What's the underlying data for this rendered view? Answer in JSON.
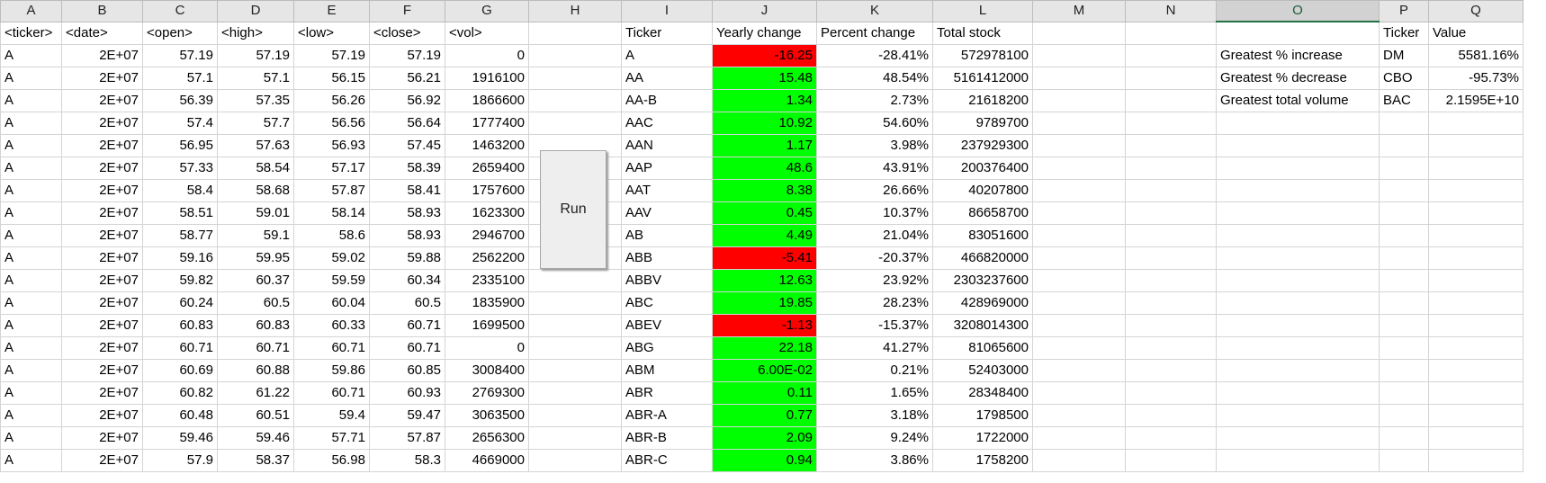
{
  "columns": [
    "A",
    "B",
    "C",
    "D",
    "E",
    "F",
    "G",
    "H",
    "I",
    "J",
    "K",
    "L",
    "M",
    "N",
    "O",
    "P",
    "Q"
  ],
  "selected_column": "O",
  "headers": {
    "ticker": "<ticker>",
    "date": "<date>",
    "open": "<open>",
    "high": "<high>",
    "low": "<low>",
    "close": "<close>",
    "vol": "<vol>",
    "summary_ticker": "Ticker",
    "yearly_change": "Yearly change",
    "percent_change": "Percent change",
    "total_stock": "Total stock",
    "greatest_ticker": "Ticker",
    "greatest_value": "Value"
  },
  "raw_rows": [
    [
      "A",
      "2E+07",
      "57.19",
      "57.19",
      "57.19",
      "57.19",
      "0"
    ],
    [
      "A",
      "2E+07",
      "57.1",
      "57.1",
      "56.15",
      "56.21",
      "1916100"
    ],
    [
      "A",
      "2E+07",
      "56.39",
      "57.35",
      "56.26",
      "56.92",
      "1866600"
    ],
    [
      "A",
      "2E+07",
      "57.4",
      "57.7",
      "56.56",
      "56.64",
      "1777400"
    ],
    [
      "A",
      "2E+07",
      "56.95",
      "57.63",
      "56.93",
      "57.45",
      "1463200"
    ],
    [
      "A",
      "2E+07",
      "57.33",
      "58.54",
      "57.17",
      "58.39",
      "2659400"
    ],
    [
      "A",
      "2E+07",
      "58.4",
      "58.68",
      "57.87",
      "58.41",
      "1757600"
    ],
    [
      "A",
      "2E+07",
      "58.51",
      "59.01",
      "58.14",
      "58.93",
      "1623300"
    ],
    [
      "A",
      "2E+07",
      "58.77",
      "59.1",
      "58.6",
      "58.93",
      "2946700"
    ],
    [
      "A",
      "2E+07",
      "59.16",
      "59.95",
      "59.02",
      "59.88",
      "2562200"
    ],
    [
      "A",
      "2E+07",
      "59.82",
      "60.37",
      "59.59",
      "60.34",
      "2335100"
    ],
    [
      "A",
      "2E+07",
      "60.24",
      "60.5",
      "60.04",
      "60.5",
      "1835900"
    ],
    [
      "A",
      "2E+07",
      "60.83",
      "60.83",
      "60.33",
      "60.71",
      "1699500"
    ],
    [
      "A",
      "2E+07",
      "60.71",
      "60.71",
      "60.71",
      "60.71",
      "0"
    ],
    [
      "A",
      "2E+07",
      "60.69",
      "60.88",
      "59.86",
      "60.85",
      "3008400"
    ],
    [
      "A",
      "2E+07",
      "60.82",
      "61.22",
      "60.71",
      "60.93",
      "2769300"
    ],
    [
      "A",
      "2E+07",
      "60.48",
      "60.51",
      "59.4",
      "59.47",
      "3063500"
    ],
    [
      "A",
      "2E+07",
      "59.46",
      "59.46",
      "57.71",
      "57.87",
      "2656300"
    ],
    [
      "A",
      "2E+07",
      "57.9",
      "58.37",
      "56.98",
      "58.3",
      "4669000"
    ]
  ],
  "summary_rows": [
    [
      "A",
      "-16.25",
      "-28.41%",
      "572978100",
      "negative"
    ],
    [
      "AA",
      "15.48",
      "48.54%",
      "5161412000",
      "positive"
    ],
    [
      "AA-B",
      "1.34",
      "2.73%",
      "21618200",
      "positive"
    ],
    [
      "AAC",
      "10.92",
      "54.60%",
      "9789700",
      "positive"
    ],
    [
      "AAN",
      "1.17",
      "3.98%",
      "237929300",
      "positive"
    ],
    [
      "AAP",
      "48.6",
      "43.91%",
      "200376400",
      "positive"
    ],
    [
      "AAT",
      "8.38",
      "26.66%",
      "40207800",
      "positive"
    ],
    [
      "AAV",
      "0.45",
      "10.37%",
      "86658700",
      "positive"
    ],
    [
      "AB",
      "4.49",
      "21.04%",
      "83051600",
      "positive"
    ],
    [
      "ABB",
      "-5.41",
      "-20.37%",
      "466820000",
      "negative"
    ],
    [
      "ABBV",
      "12.63",
      "23.92%",
      "2303237600",
      "positive"
    ],
    [
      "ABC",
      "19.85",
      "28.23%",
      "428969000",
      "positive"
    ],
    [
      "ABEV",
      "-1.13",
      "-15.37%",
      "3208014300",
      "negative"
    ],
    [
      "ABG",
      "22.18",
      "41.27%",
      "81065600",
      "positive"
    ],
    [
      "ABM",
      "6.00E-02",
      "0.21%",
      "52403000",
      "positive"
    ],
    [
      "ABR",
      "0.11",
      "1.65%",
      "28348400",
      "positive"
    ],
    [
      "ABR-A",
      "0.77",
      "3.18%",
      "1798500",
      "positive"
    ],
    [
      "ABR-B",
      "2.09",
      "9.24%",
      "1722000",
      "positive"
    ],
    [
      "ABR-C",
      "0.94",
      "3.86%",
      "1758200",
      "positive"
    ]
  ],
  "greatest": [
    {
      "label": "Greatest % increase",
      "ticker": "DM",
      "value": "5581.16%"
    },
    {
      "label": "Greatest % decrease",
      "ticker": "CBO",
      "value": "-95.73%"
    },
    {
      "label": "Greatest total volume",
      "ticker": "BAC",
      "value": "2.1595E+10"
    }
  ],
  "run_button_label": "Run",
  "colors": {
    "positive": "#00ff00",
    "negative": "#ff0000",
    "selected_header_accent": "#217346"
  }
}
